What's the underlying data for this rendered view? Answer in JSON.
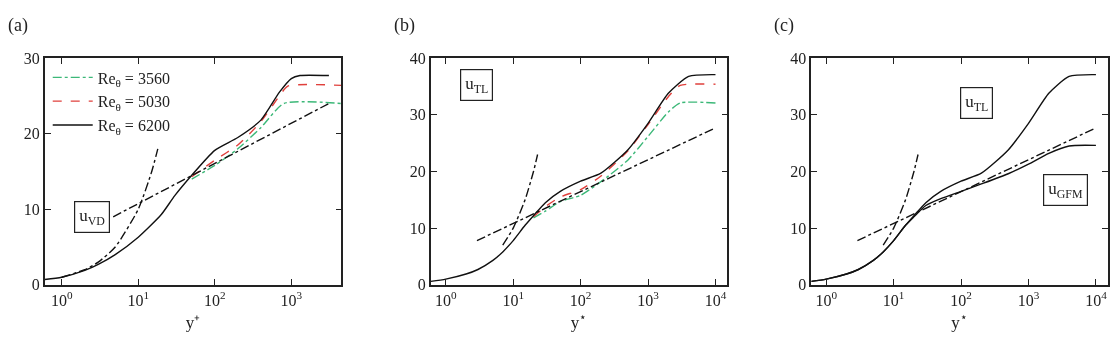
{
  "chart_data": [
    {
      "type": "line",
      "title": "(a)",
      "xlabel": "y⁺",
      "log": "x",
      "legend": "top left",
      "xlim": [
        0.6,
        4500
      ],
      "ylim": [
        0,
        30
      ],
      "xticks": [
        {
          "value": 1,
          "label": "10$^{0}$"
        },
        {
          "value": 10,
          "label": "10$^{1}$"
        },
        {
          "value": 100,
          "label": "10$^{2}$"
        },
        {
          "value": 1000,
          "label": "10$^{3}$"
        }
      ],
      "yticks": [
        0,
        10,
        20,
        30
      ],
      "annotations": [
        "u$_{VD}$"
      ],
      "series": [
        {
          "name": "Re$_{θ}$ = 3560",
          "color": "#3cb878",
          "line_style": "dashdot",
          "x": [
            50,
            100,
            200,
            400,
            800,
            4500
          ],
          "values": [
            14.0,
            15.8,
            18.0,
            20.8,
            24.0,
            24.0
          ]
        },
        {
          "name": "Re$_{θ}$ = 5030",
          "color": "#e0403c",
          "line_style": "dashed",
          "x": [
            50,
            100,
            200,
            400,
            700,
            900,
            4500
          ],
          "values": [
            14.3,
            16.5,
            18.5,
            21.6,
            25.0,
            26.3,
            26.4
          ]
        },
        {
          "name": "Re$_{θ}$ = 6200",
          "color": "#111111",
          "line_style": "solid",
          "x": [
            0.6,
            1,
            2,
            3,
            5,
            10,
            20,
            30,
            50,
            100,
            200,
            400,
            700,
            1000,
            1300,
            3100
          ],
          "values": [
            0.7,
            1.0,
            1.9,
            2.7,
            4.0,
            6.3,
            9.3,
            11.8,
            14.5,
            17.8,
            19.5,
            21.8,
            25.5,
            27.3,
            27.7,
            27.7
          ]
        },
        {
          "color": "#111111",
          "line_style": "dashdot",
          "x": [
            1,
            2,
            3,
            5,
            10,
            15,
            18
          ],
          "values": [
            1,
            2,
            3,
            5,
            10,
            15,
            18
          ]
        },
        {
          "color": "#111111",
          "line_style": "dashdot",
          "x": [
            4.7,
            3100
          ],
          "values": [
            9.0,
            24.0
          ]
        }
      ]
    },
    {
      "type": "line",
      "title": "(b)",
      "xlabel": "y$^{⋆}$",
      "log": "x",
      "xlim": [
        0.6,
        15000
      ],
      "ylim": [
        0,
        40
      ],
      "xticks": [
        {
          "value": 1,
          "label": "10$^{0}$"
        },
        {
          "value": 10,
          "label": "10$^{1}$"
        },
        {
          "value": 100,
          "label": "10$^{2}$"
        },
        {
          "value": 1000,
          "label": "10$^{3}$"
        },
        {
          "value": 10000,
          "label": "10$^{4}$"
        }
      ],
      "yticks": [
        0,
        10,
        20,
        30,
        40
      ],
      "annotations": [
        "u$_{TL}$"
      ],
      "series": [
        {
          "color": "#3cb878",
          "line_style": "dashdot",
          "x": [
            20,
            30,
            50,
            100,
            200,
            500,
            1000,
            2000,
            3000,
            10000
          ],
          "values": [
            11.8,
            13.0,
            14.7,
            15.8,
            18.2,
            22.0,
            26.2,
            30.5,
            32.1,
            32.1
          ]
        },
        {
          "color": "#e0403c",
          "line_style": "dashed",
          "x": [
            20,
            30,
            50,
            100,
            200,
            500,
            1000,
            2000,
            3000,
            10000
          ],
          "values": [
            12.0,
            13.8,
            15.5,
            16.8,
            19.2,
            23.6,
            28.3,
            33.2,
            35.2,
            35.4
          ]
        },
        {
          "color": "#111111",
          "line_style": "solid",
          "x": [
            0.6,
            1,
            2,
            3,
            5,
            7,
            10,
            15,
            20,
            30,
            50,
            100,
            200,
            500,
            1000,
            2000,
            4000,
            10000
          ],
          "values": [
            0.6,
            1.0,
            1.9,
            2.7,
            4.3,
            5.8,
            7.8,
            10.5,
            12.2,
            14.5,
            16.5,
            18.3,
            19.7,
            23.8,
            28.5,
            33.8,
            36.8,
            37.1
          ]
        },
        {
          "color": "#111111",
          "line_style": "dashdot",
          "x": [
            7,
            10,
            15,
            20,
            23
          ],
          "values": [
            7,
            10,
            15,
            20,
            23
          ]
        },
        {
          "color": "#111111",
          "line_style": "dashdot",
          "x": [
            2.9,
            10000
          ],
          "values": [
            7.8,
            27.7
          ]
        }
      ]
    },
    {
      "type": "line",
      "title": "(c)",
      "xlabel": "y$^{⋆}$",
      "log": "x",
      "xlim": [
        0.6,
        15000
      ],
      "ylim": [
        0,
        40
      ],
      "xticks": [
        {
          "value": 1,
          "label": "10$^{0}$"
        },
        {
          "value": 10,
          "label": "10$^{1}$"
        },
        {
          "value": 100,
          "label": "10$^{2}$"
        },
        {
          "value": 1000,
          "label": "10$^{3}$"
        },
        {
          "value": 10000,
          "label": "10$^{4}$"
        }
      ],
      "yticks": [
        0,
        10,
        20,
        30,
        40
      ],
      "annotations": [
        "u$_{TL}$",
        "u$_{GFM}$"
      ],
      "series": [
        {
          "color": "#111111",
          "line_style": "solid",
          "x": [
            0.6,
            1,
            2,
            3,
            5,
            7,
            10,
            15,
            20,
            30,
            50,
            100,
            200,
            500,
            1000,
            2000,
            4000,
            10000
          ],
          "values": [
            0.6,
            1.0,
            1.9,
            2.7,
            4.3,
            5.8,
            7.8,
            10.5,
            12.2,
            14.5,
            16.5,
            18.3,
            19.7,
            23.8,
            28.5,
            33.8,
            36.8,
            37.1
          ]
        },
        {
          "color": "#111111",
          "line_style": "solid",
          "x": [
            0.6,
            1,
            2,
            3,
            5,
            7,
            10,
            15,
            20,
            30,
            50,
            100,
            200,
            500,
            1000,
            2000,
            4000,
            10000
          ],
          "values": [
            0.6,
            1.0,
            1.9,
            2.7,
            4.3,
            5.8,
            7.8,
            10.5,
            12.0,
            14.0,
            15.2,
            16.5,
            17.8,
            19.6,
            21.3,
            23.2,
            24.5,
            24.6
          ]
        },
        {
          "color": "#111111",
          "line_style": "dashdot",
          "x": [
            7,
            10,
            15,
            20,
            23
          ],
          "values": [
            7,
            10,
            15,
            20,
            23
          ]
        },
        {
          "color": "#111111",
          "line_style": "dashdot",
          "x": [
            2.9,
            10000
          ],
          "values": [
            7.8,
            27.7
          ]
        }
      ]
    }
  ]
}
